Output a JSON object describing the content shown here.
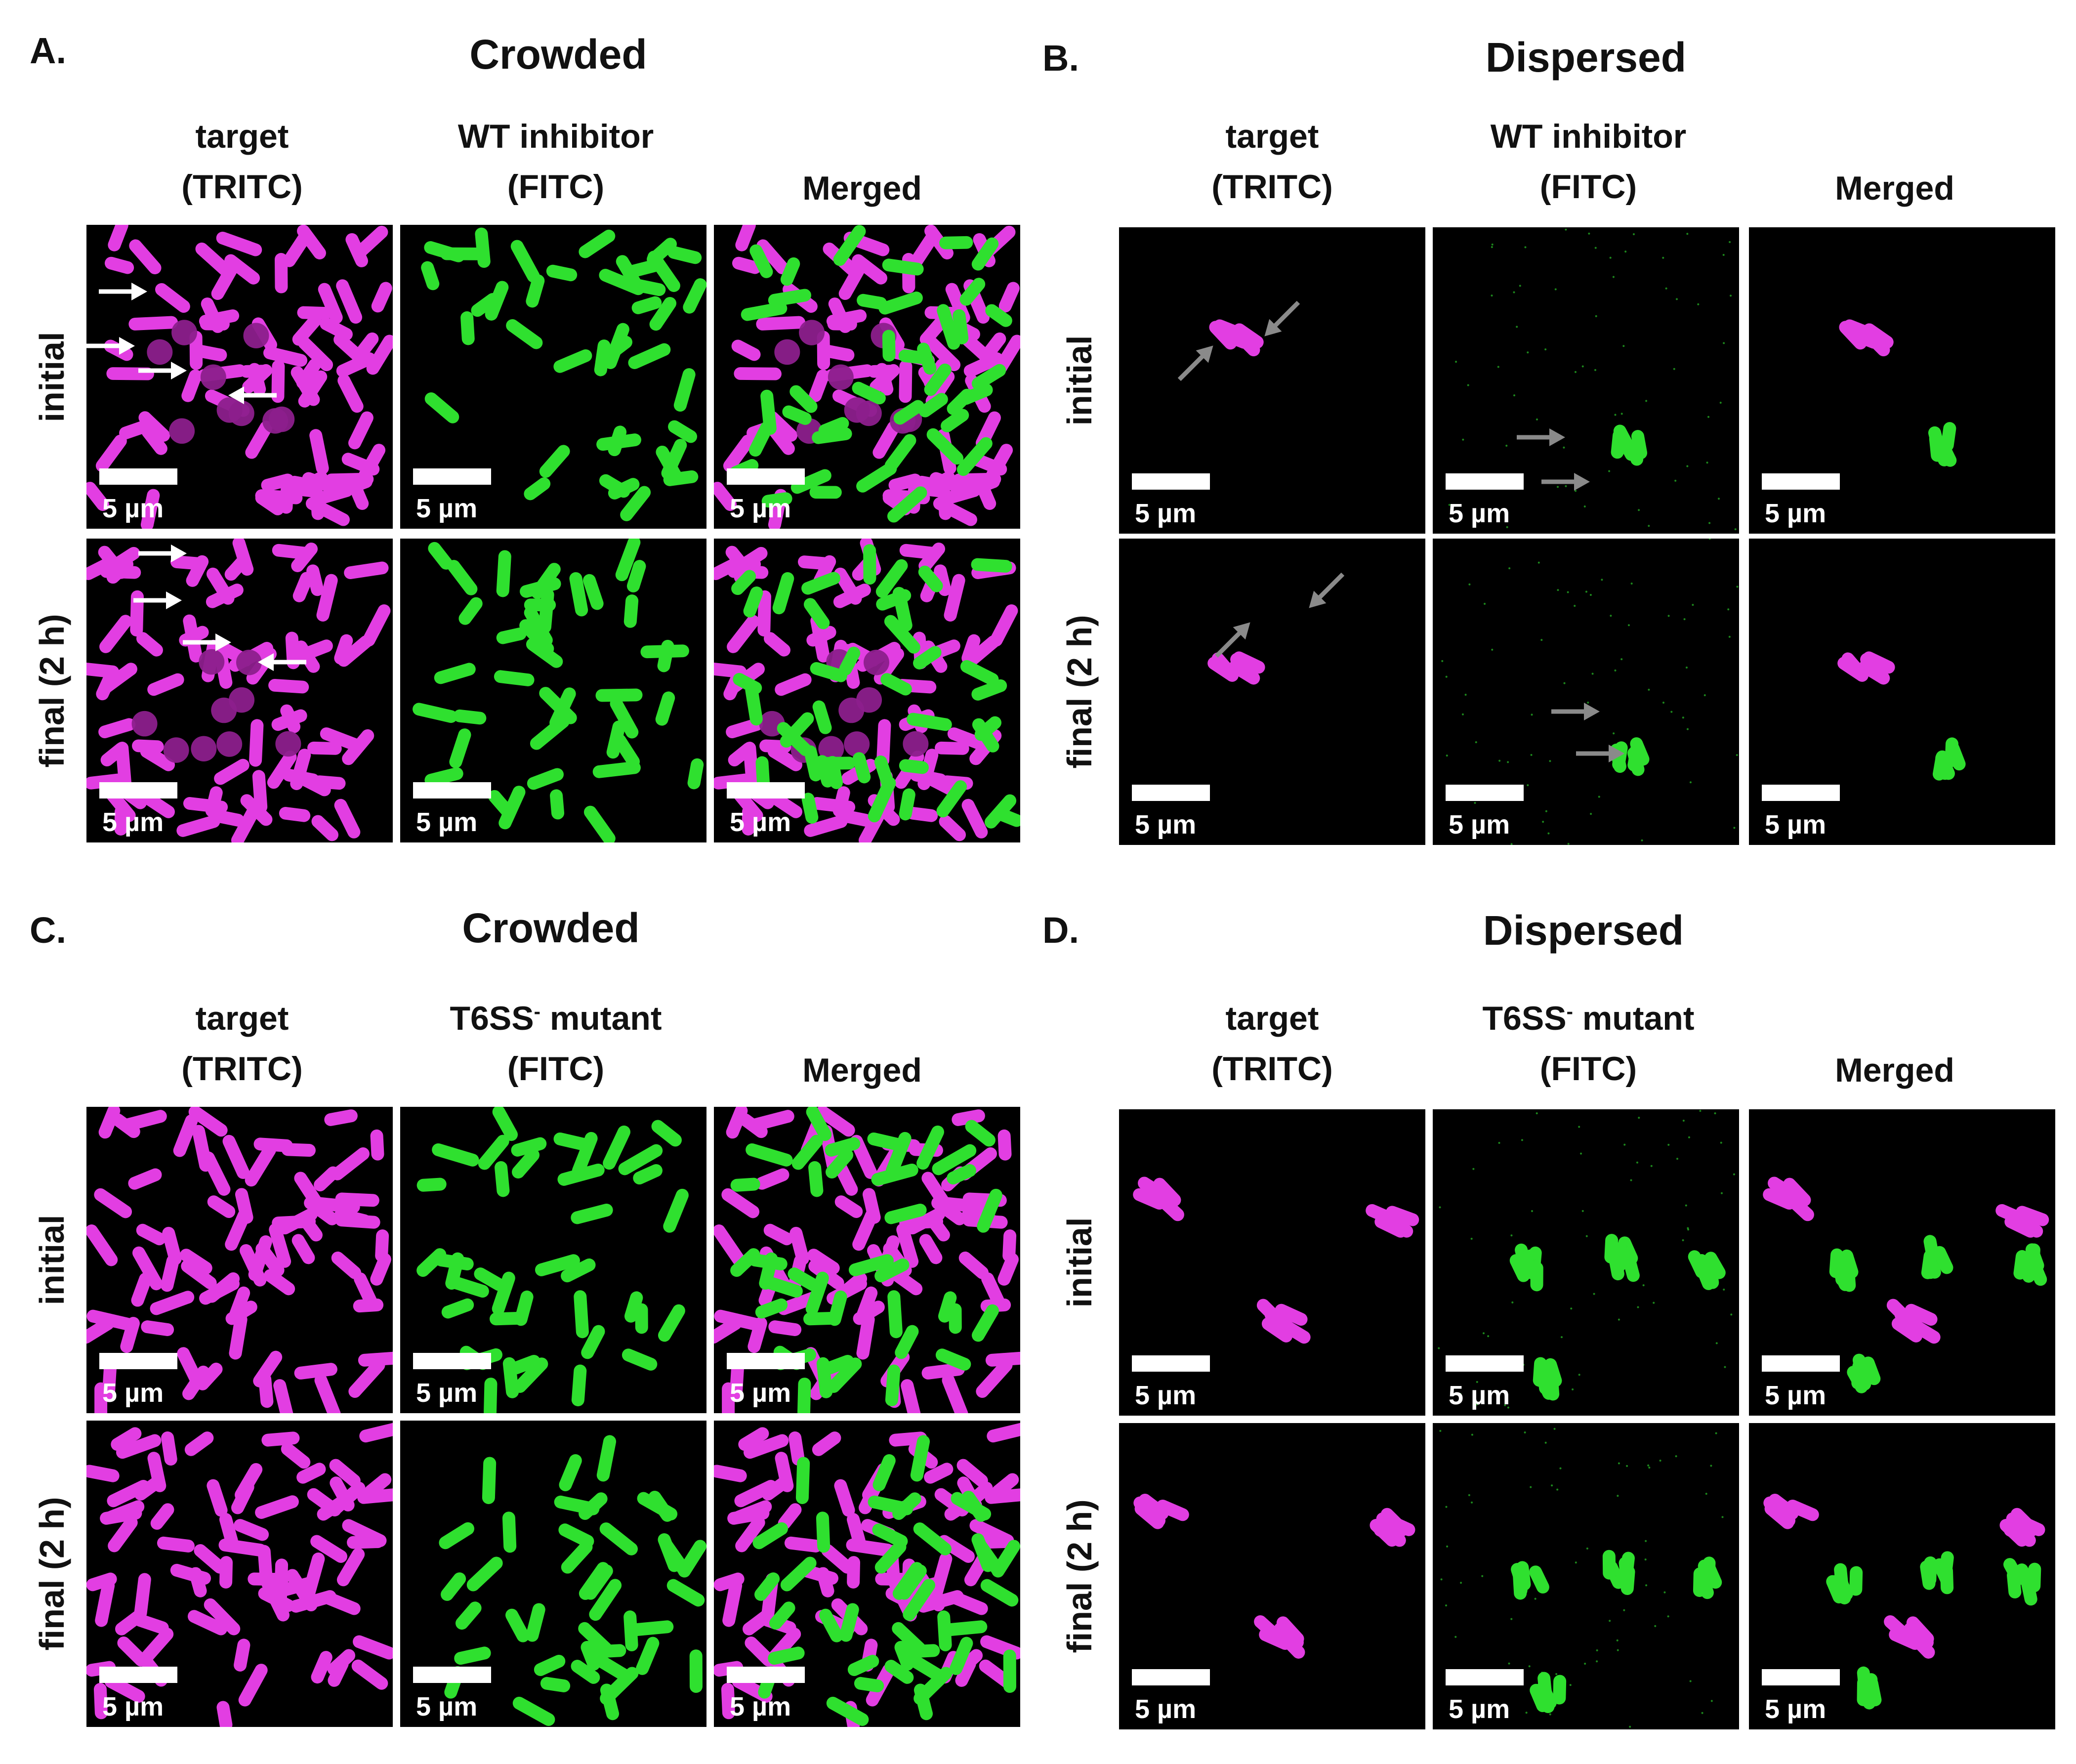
{
  "panels": [
    {
      "letter": "A.",
      "condition": "Crowded",
      "col1": [
        "target",
        "(TRITC)"
      ],
      "col2": [
        "WT inhibitor",
        "(FITC)"
      ],
      "col2_sup": "",
      "col3": "Merged"
    },
    {
      "letter": "B.",
      "condition": "Dispersed",
      "col1": [
        "target",
        "(TRITC)"
      ],
      "col2": [
        "WT inhibitor",
        "(FITC)"
      ],
      "col2_sup": "",
      "col3": "Merged"
    },
    {
      "letter": "C.",
      "condition": "Crowded",
      "col1": [
        "target",
        "(TRITC)"
      ],
      "col2": [
        "T6SS",
        " mutant",
        "(FITC)"
      ],
      "col2_sup": "-",
      "col3": "Merged"
    },
    {
      "letter": "D.",
      "condition": "Dispersed",
      "col1": [
        "target",
        "(TRITC)"
      ],
      "col2": [
        "T6SS",
        " mutant",
        "(FITC)"
      ],
      "col2_sup": "-",
      "col3": "Merged"
    }
  ],
  "rows": [
    "initial",
    "final (2 h)"
  ],
  "scale_bar": "5 µm",
  "colors": {
    "target": "#e23ee2",
    "inhibitor": "#2fe02f",
    "background": "#000000",
    "arrow_white": "#ffffff",
    "arrow_gray": "#8a8a8a"
  }
}
